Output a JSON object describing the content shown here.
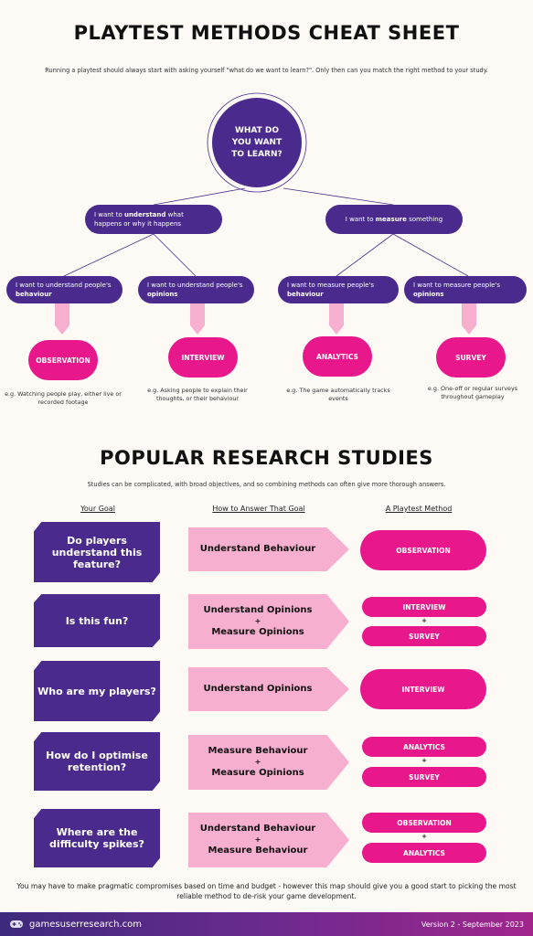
{
  "header": {
    "title": "PLAYTEST METHODS CHEAT SHEET",
    "intro": "Running a playtest should always start with asking yourself \"what do we want to learn?\". Only then can you match the right method to your study."
  },
  "tree": {
    "root": "WHAT DO YOU WANT TO LEARN?",
    "understand": {
      "pre": "I want to ",
      "key": "understand",
      "post": " what happens or why it happens"
    },
    "measure": {
      "pre": "I want to ",
      "key": "measure",
      "post": " something"
    },
    "leaves": [
      {
        "pre": "I want to understand people's",
        "key": "behaviour",
        "method": "OBSERVATION",
        "example": "e.g. Watching people play, either live or recorded footage"
      },
      {
        "pre": "I want to understand people's",
        "key": "opinions",
        "method": "INTERVIEW",
        "example": "e.g. Asking people to explain their thoughts, or their behaviour"
      },
      {
        "pre": "I want to measure people's",
        "key": "behaviour",
        "method": "ANALYTICS",
        "example": "e.g. The game automatically tracks events"
      },
      {
        "pre": "I want to measure people's",
        "key": "opinions",
        "method": "SURVEY",
        "example": "e.g. One-off or regular surveys throughout gameplay"
      }
    ]
  },
  "studies": {
    "title": "POPULAR RESEARCH STUDIES",
    "intro": "Studies can be complicated, with broad objectives, and so combining methods can often give more thorough answers.",
    "col_goal": "Your Goal",
    "col_how": "How to Answer That Goal",
    "col_method": "A Playtest Method",
    "rows": [
      {
        "goal": "Do players understand this feature?",
        "how": [
          "Understand Behaviour"
        ],
        "methods": [
          "OBSERVATION"
        ]
      },
      {
        "goal": "Is this fun?",
        "how": [
          "Understand Opinions",
          "Measure Opinions"
        ],
        "methods": [
          "INTERVIEW",
          "SURVEY"
        ]
      },
      {
        "goal": "Who are my players?",
        "how": [
          "Understand Opinions"
        ],
        "methods": [
          "INTERVIEW"
        ]
      },
      {
        "goal": "How do I optimise retention?",
        "how": [
          "Measure Behaviour",
          "Measure Opinions"
        ],
        "methods": [
          "ANALYTICS",
          "SURVEY"
        ]
      },
      {
        "goal": "Where are the difficulty spikes?",
        "how": [
          "Understand Behaviour",
          "Measure Behaviour"
        ],
        "methods": [
          "OBSERVATION",
          "ANALYTICS"
        ]
      }
    ],
    "plus": "+"
  },
  "closing": "You may have to make pragmatic compromises based on time and budget - however this map should give you a good start to picking the most reliable method to de-risk your game development.",
  "footer": {
    "site": "gamesuserresearch.com",
    "version": "Version 2 - September 2023"
  },
  "colors": {
    "purple": "#4a2a8c",
    "pink": "#e8188c",
    "light_pink": "#f7afd0"
  }
}
